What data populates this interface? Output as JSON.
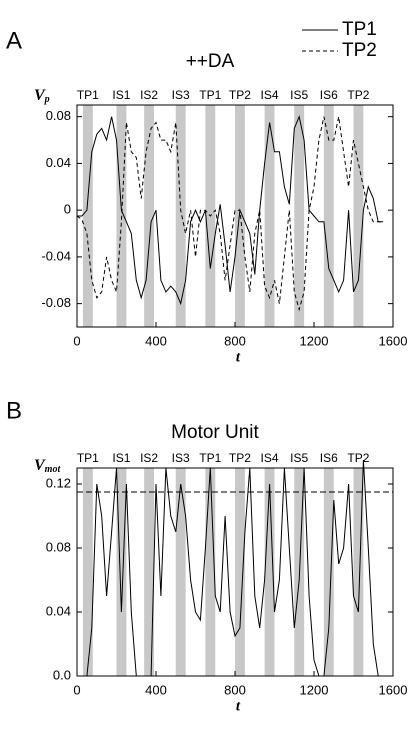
{
  "chart_data": [
    {
      "type": "line",
      "panel": "A",
      "title": "++DA",
      "ylabel": "V",
      "ylabel_sub": "p",
      "xlabel": "t",
      "xlim": [
        0,
        1600
      ],
      "xticks": [
        0,
        400,
        800,
        1200,
        1600
      ],
      "ylim": [
        -0.1,
        0.09
      ],
      "yticks": [
        -0.08,
        -0.04,
        0,
        0.04,
        0.08
      ],
      "bands": [
        {
          "label": "TP1",
          "start": 30,
          "end": 80
        },
        {
          "label": "IS1",
          "start": 200,
          "end": 250
        },
        {
          "label": "IS2",
          "start": 340,
          "end": 390
        },
        {
          "label": "IS3",
          "start": 500,
          "end": 550
        },
        {
          "label": "TP1",
          "start": 650,
          "end": 700
        },
        {
          "label": "TP2",
          "start": 800,
          "end": 850
        },
        {
          "label": "IS4",
          "start": 950,
          "end": 1000
        },
        {
          "label": "IS5",
          "start": 1100,
          "end": 1150
        },
        {
          "label": "IS6",
          "start": 1250,
          "end": 1300
        },
        {
          "label": "TP2",
          "start": 1400,
          "end": 1450
        }
      ],
      "band_color": "#c8c8c8",
      "x": [
        0,
        25,
        50,
        75,
        100,
        125,
        150,
        175,
        200,
        225,
        250,
        275,
        300,
        325,
        350,
        375,
        400,
        425,
        450,
        475,
        500,
        525,
        550,
        575,
        600,
        625,
        650,
        675,
        700,
        725,
        750,
        775,
        800,
        825,
        850,
        875,
        900,
        925,
        950,
        975,
        1000,
        1025,
        1050,
        1075,
        1100,
        1125,
        1150,
        1175,
        1200,
        1225,
        1250,
        1275,
        1300,
        1325,
        1350,
        1375,
        1400,
        1425,
        1450,
        1475,
        1500,
        1525,
        1550
      ],
      "series": [
        {
          "name": "TP1",
          "color": "#000000",
          "dashed": false,
          "values": [
            -0.005,
            -0.005,
            0.0,
            0.05,
            0.065,
            0.07,
            0.06,
            0.08,
            0.06,
            0.0,
            -0.01,
            -0.02,
            -0.06,
            -0.075,
            -0.06,
            -0.01,
            0.0,
            -0.06,
            -0.07,
            -0.065,
            -0.07,
            -0.08,
            -0.06,
            -0.01,
            0.0,
            -0.01,
            0.0,
            -0.05,
            -0.02,
            0.005,
            -0.03,
            -0.07,
            -0.04,
            0.0,
            -0.01,
            -0.02,
            -0.055,
            0.0,
            0.04,
            0.075,
            0.05,
            0.05,
            0.02,
            0.005,
            0.07,
            0.08,
            0.06,
            0.0,
            -0.005,
            -0.01,
            -0.01,
            -0.05,
            -0.06,
            -0.07,
            -0.06,
            0.0,
            -0.07,
            -0.06,
            0.0,
            0.02,
            0.01,
            -0.01,
            -0.01
          ]
        },
        {
          "name": "TP2",
          "color": "#000000",
          "dashed": true,
          "values": [
            -0.005,
            -0.008,
            -0.02,
            -0.06,
            -0.075,
            -0.07,
            -0.04,
            -0.06,
            -0.07,
            -0.01,
            0.075,
            0.05,
            0.045,
            0.01,
            0.05,
            0.07,
            0.075,
            0.06,
            0.06,
            0.05,
            0.075,
            0.0,
            -0.02,
            0.0,
            -0.04,
            0.0,
            0.0,
            -0.005,
            0.0,
            -0.02,
            -0.06,
            -0.03,
            0.0,
            0.0,
            -0.04,
            -0.07,
            -0.02,
            0.0,
            -0.065,
            -0.075,
            -0.06,
            -0.08,
            -0.04,
            0.0,
            -0.07,
            -0.085,
            -0.07,
            0.0,
            0.02,
            0.06,
            0.08,
            0.06,
            0.06,
            0.08,
            0.05,
            0.02,
            0.06,
            0.04,
            0.02,
            0.0,
            -0.01,
            -0.01,
            -0.01
          ]
        }
      ],
      "legend": "top-right"
    },
    {
      "type": "line",
      "panel": "B",
      "title": "Motor Unit",
      "ylabel": "V",
      "ylabel_sub": "mot",
      "xlabel": "t",
      "xlim": [
        0,
        1600
      ],
      "xticks": [
        0,
        400,
        800,
        1200,
        1600
      ],
      "ylim": [
        0,
        0.13
      ],
      "yticks": [
        {
          "value": 0,
          "label": "0.0"
        },
        0.04,
        0.08,
        0.12
      ],
      "threshold": 0.115,
      "bands": [
        {
          "label": "TP1",
          "start": 30,
          "end": 80
        },
        {
          "label": "IS1",
          "start": 200,
          "end": 250
        },
        {
          "label": "IS2",
          "start": 340,
          "end": 390
        },
        {
          "label": "IS3",
          "start": 500,
          "end": 550
        },
        {
          "label": "TP1",
          "start": 650,
          "end": 700
        },
        {
          "label": "TP2",
          "start": 800,
          "end": 850
        },
        {
          "label": "IS4",
          "start": 950,
          "end": 1000
        },
        {
          "label": "IS5",
          "start": 1100,
          "end": 1150
        },
        {
          "label": "IS6",
          "start": 1250,
          "end": 1300
        },
        {
          "label": "TP2",
          "start": 1400,
          "end": 1450
        }
      ],
      "band_color": "#c8c8c8",
      "x": [
        0,
        25,
        50,
        75,
        100,
        125,
        150,
        175,
        200,
        225,
        250,
        275,
        300,
        325,
        350,
        375,
        400,
        425,
        450,
        475,
        500,
        525,
        550,
        575,
        600,
        625,
        650,
        675,
        700,
        725,
        750,
        775,
        800,
        825,
        850,
        875,
        900,
        925,
        950,
        975,
        1000,
        1025,
        1050,
        1075,
        1100,
        1125,
        1150,
        1175,
        1200,
        1225,
        1250,
        1275,
        1300,
        1325,
        1350,
        1375,
        1400,
        1425,
        1450,
        1475,
        1500,
        1525,
        1550
      ],
      "series": [
        {
          "color": "#000000",
          "dashed": false,
          "values": [
            0,
            0,
            0,
            0.03,
            0.12,
            0.1,
            0.05,
            0.09,
            0.13,
            0.04,
            0.12,
            0.04,
            0,
            0,
            0,
            0,
            0.12,
            0.05,
            0.13,
            0.1,
            0.09,
            0.12,
            0.1,
            0.06,
            0.04,
            0.035,
            0.08,
            0.13,
            0.05,
            0.04,
            0.1,
            0.04,
            0.025,
            0.03,
            0.09,
            0.13,
            0.05,
            0.03,
            0.06,
            0.12,
            0.04,
            0.06,
            0.13,
            0.08,
            0.03,
            0.06,
            0.13,
            0.05,
            0.01,
            0,
            0,
            0.03,
            0.11,
            0.07,
            0.08,
            0.12,
            0.05,
            0.04,
            0.135,
            0.08,
            0.02,
            0,
            0
          ]
        }
      ]
    }
  ]
}
